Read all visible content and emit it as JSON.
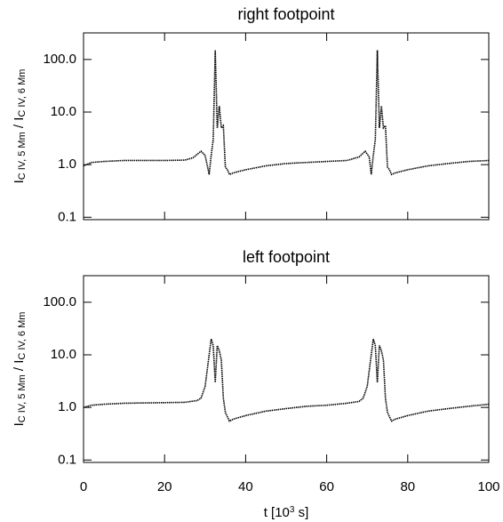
{
  "chart_data": [
    {
      "type": "line",
      "title": "right footpoint",
      "y_label": [
        "I",
        "C IV, 5 Mm",
        " / I",
        "C IV, 6 Mm"
      ],
      "x": [
        0,
        2,
        5,
        10,
        15,
        20,
        25,
        27,
        29,
        30,
        31,
        31.5,
        32,
        32.5,
        33,
        33.5,
        34,
        34.5,
        35,
        35.5,
        36,
        37,
        40,
        45,
        50,
        55,
        60,
        65,
        68,
        69.5,
        70.5,
        71,
        71.5,
        72,
        72.5,
        73,
        73.5,
        74,
        74.5,
        75,
        75.5,
        76,
        77,
        80,
        85,
        90,
        95,
        100
      ],
      "series": [
        {
          "color": "#000000",
          "values": [
            0.95,
            1.1,
            1.15,
            1.2,
            1.2,
            1.2,
            1.22,
            1.35,
            1.8,
            1.5,
            0.65,
            1.5,
            3,
            150,
            5,
            13,
            5,
            5.5,
            0.9,
            0.8,
            0.65,
            0.7,
            0.8,
            0.95,
            1.05,
            1.1,
            1.15,
            1.2,
            1.4,
            1.8,
            1.4,
            0.65,
            1.5,
            3,
            150,
            5,
            13,
            5,
            5.5,
            0.9,
            0.8,
            0.65,
            0.7,
            0.8,
            0.95,
            1.05,
            1.15,
            1.2
          ]
        }
      ],
      "xlim": [
        0,
        100
      ],
      "xticks": [
        0,
        20,
        40,
        60,
        80,
        100
      ],
      "ylim": [
        0.09,
        320
      ],
      "log_y": true,
      "yticks": [
        0.1,
        {
          "value": 1,
          "label": "1.0"
        },
        {
          "value": 10,
          "label": "10.0"
        },
        {
          "value": 100,
          "label": "100.0"
        }
      ]
    },
    {
      "type": "line",
      "title": "left footpoint",
      "y_label": [
        "I",
        "C IV, 5 Mm",
        " / I",
        "C IV, 6 Mm"
      ],
      "x_label": [
        "t [10",
        "3",
        " s]"
      ],
      "x": [
        0,
        2,
        5,
        10,
        25,
        28,
        29,
        30,
        31,
        31.5,
        32,
        32.5,
        33,
        33.5,
        34,
        34.5,
        35,
        36,
        37,
        40,
        45,
        50,
        55,
        60,
        65,
        68,
        69,
        70,
        71,
        71.5,
        72,
        72.5,
        73,
        73.5,
        74,
        74.5,
        75,
        76,
        77,
        80,
        85,
        90,
        95,
        100
      ],
      "series": [
        {
          "color": "#000000",
          "values": [
            1.0,
            1.1,
            1.15,
            1.2,
            1.25,
            1.35,
            1.5,
            2.5,
            10,
            20,
            15,
            3,
            15,
            12,
            8,
            1.5,
            0.8,
            0.55,
            0.6,
            0.7,
            0.85,
            0.95,
            1.05,
            1.1,
            1.2,
            1.3,
            1.5,
            2.5,
            10,
            20,
            15,
            3,
            15,
            12,
            8,
            1.5,
            0.8,
            0.55,
            0.6,
            0.7,
            0.85,
            0.95,
            1.05,
            1.15
          ]
        }
      ],
      "xlim": [
        0,
        100
      ],
      "xticks": [
        0,
        20,
        40,
        60,
        80,
        100
      ],
      "ylim": [
        0.09,
        320
      ],
      "log_y": true,
      "yticks": [
        0.1,
        {
          "value": 1,
          "label": "1.0"
        },
        {
          "value": 10,
          "label": "10.0"
        },
        {
          "value": 100,
          "label": "100.0"
        }
      ]
    }
  ]
}
